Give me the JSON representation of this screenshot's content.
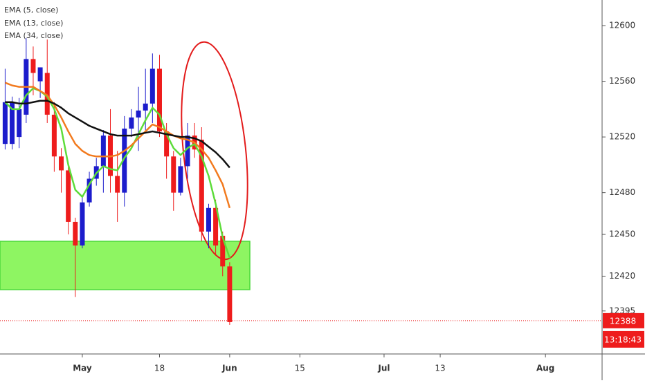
{
  "chart_data": {
    "type": "candlestick",
    "x": [
      -11,
      -10,
      -9,
      -8,
      -7,
      -6,
      -5,
      -4,
      -3,
      -2,
      -1,
      0,
      1,
      2,
      3,
      4,
      5,
      6,
      7,
      8,
      9,
      10,
      11,
      12,
      13,
      14,
      15,
      16,
      17,
      18,
      19,
      20,
      21
    ],
    "open": [
      12515,
      12515,
      12520,
      12536,
      12576,
      12560,
      12566,
      12536,
      12506,
      12496,
      12459,
      12442,
      12473,
      12490,
      12499,
      12521,
      12492,
      12480,
      12526,
      12534,
      12539,
      12544,
      12569,
      12524,
      12506,
      12480,
      12499,
      12521,
      12518,
      12452,
      12469,
      12449,
      12427
    ],
    "high": [
      12569,
      12549,
      12548,
      12591,
      12585,
      12570,
      12590,
      12545,
      12512,
      12500,
      12462,
      12478,
      12495,
      12505,
      12525,
      12540,
      12510,
      12535,
      12540,
      12556,
      12569,
      12580,
      12579,
      12530,
      12510,
      12505,
      12530,
      12530,
      12527,
      12472,
      12475,
      12452,
      12430
    ],
    "low": [
      12511,
      12511,
      12512,
      12530,
      12550,
      12548,
      12530,
      12495,
      12480,
      12450,
      12405,
      12440,
      12470,
      12485,
      12480,
      12480,
      12459,
      12470,
      12520,
      12510,
      12525,
      12530,
      12520,
      12490,
      12467,
      12478,
      12490,
      12505,
      12445,
      12440,
      12435,
      12420,
      12385
    ],
    "close": [
      12545,
      12545,
      12540,
      12576,
      12566,
      12570,
      12536,
      12506,
      12496,
      12459,
      12442,
      12473,
      12490,
      12499,
      12521,
      12492,
      12480,
      12526,
      12534,
      12539,
      12544,
      12569,
      12524,
      12506,
      12480,
      12499,
      12521,
      12511,
      12452,
      12469,
      12442,
      12427,
      12387
    ],
    "up_color": "#1c1ccc",
    "down_color": "#ee1c1c",
    "series": [
      {
        "name": "EMA (5, close)",
        "color": "#5ddc3a",
        "values": [
          12545,
          12540,
          12540,
          12550,
          12555,
          12553,
          12549,
          12540,
          12526,
          12500,
          12482,
          12477,
          12486,
          12494,
          12499,
          12497,
          12496,
          12505,
          12512,
          12522,
          12532,
          12541,
          12536,
          12522,
          12512,
          12507,
          12512,
          12515,
          12506,
          12492,
          12472,
          12448,
          12433
        ]
      },
      {
        "name": "EMA (13, close)",
        "color": "#f27a1e",
        "values": [
          12559,
          12557,
          12556,
          12556,
          12556,
          12553,
          12550,
          12543,
          12534,
          12524,
          12515,
          12510,
          12507,
          12506,
          12506,
          12506,
          12507,
          12510,
          12514,
          12519,
          12524,
          12529,
          12527,
          12524,
          12521,
          12519,
          12518,
          12516,
          12511,
          12505,
          12496,
          12486,
          12469
        ]
      },
      {
        "name": "EMA (34, close)",
        "color": "#111111",
        "values": [
          12545,
          12545,
          12544,
          12544,
          12545,
          12546,
          12546,
          12544,
          12541,
          12537,
          12534,
          12531,
          12528,
          12526,
          12524,
          12522,
          12521,
          12521,
          12521,
          12522,
          12523,
          12524,
          12523,
          12522,
          12521,
          12520,
          12520,
          12519,
          12517,
          12513,
          12509,
          12504,
          12498
        ]
      }
    ],
    "xlim": [
      -11.73,
      74.07
    ],
    "xticks": [
      {
        "value": 0,
        "label": "May"
      },
      {
        "value": 11,
        "label": "18"
      },
      {
        "value": 21,
        "label": "Jun"
      },
      {
        "value": 31,
        "label": "15"
      },
      {
        "value": 43,
        "label": "Jul"
      },
      {
        "value": 51,
        "label": "13"
      },
      {
        "value": 66,
        "label": "Aug"
      }
    ],
    "ylim": [
      12364.1,
      12618.4
    ],
    "yticks": [
      12600,
      12560,
      12520,
      12480,
      12450,
      12420,
      12395
    ],
    "last_price": 12388,
    "last_price_color": "#ee1c1c",
    "countdown": "13:18:43"
  }
}
